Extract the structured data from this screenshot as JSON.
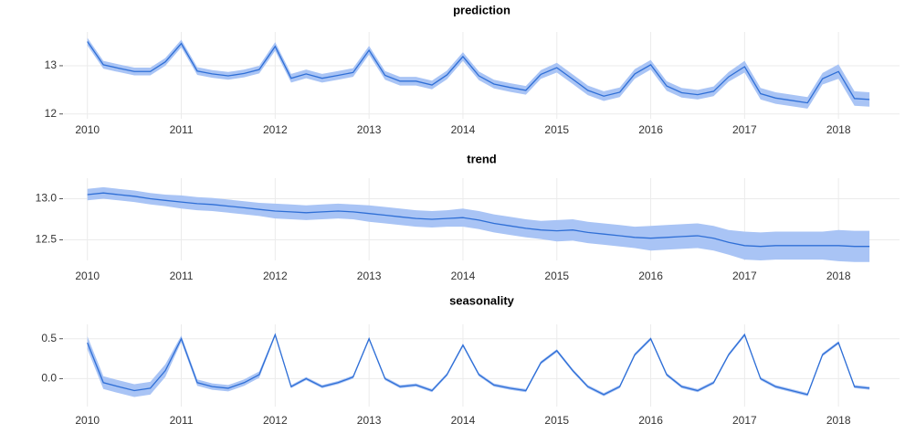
{
  "chart_data": [
    {
      "type": "line",
      "title": "prediction",
      "x": [
        2010,
        2010.17,
        2010.33,
        2010.5,
        2010.67,
        2010.83,
        2011,
        2011.17,
        2011.33,
        2011.5,
        2011.67,
        2011.83,
        2012,
        2012.17,
        2012.33,
        2012.5,
        2012.67,
        2012.83,
        2013,
        2013.17,
        2013.33,
        2013.5,
        2013.67,
        2013.83,
        2014,
        2014.17,
        2014.33,
        2014.5,
        2014.67,
        2014.83,
        2015,
        2015.17,
        2015.33,
        2015.5,
        2015.67,
        2015.83,
        2016,
        2016.17,
        2016.33,
        2016.5,
        2016.67,
        2016.83,
        2017,
        2017.17,
        2017.33,
        2017.5,
        2017.67,
        2017.83,
        2018,
        2018.17,
        2018.33
      ],
      "series": [
        {
          "color": "#2f6fd6",
          "band_color": "#a9c4f5",
          "values": [
            13.5,
            13.02,
            12.95,
            12.88,
            12.88,
            13.08,
            13.46,
            12.89,
            12.83,
            12.79,
            12.84,
            12.92,
            13.4,
            12.74,
            12.83,
            12.74,
            12.8,
            12.86,
            13.32,
            12.8,
            12.68,
            12.68,
            12.6,
            12.81,
            13.19,
            12.79,
            12.62,
            12.55,
            12.49,
            12.82,
            12.96,
            12.72,
            12.49,
            12.37,
            12.45,
            12.83,
            13.02,
            12.58,
            12.44,
            12.4,
            12.47,
            12.77,
            12.98,
            12.42,
            12.33,
            12.28,
            12.23,
            12.73,
            12.88,
            12.32,
            12.3
          ],
          "error": [
            0.08,
            0.08,
            0.08,
            0.08,
            0.08,
            0.08,
            0.08,
            0.08,
            0.08,
            0.08,
            0.08,
            0.08,
            0.09,
            0.09,
            0.09,
            0.09,
            0.09,
            0.09,
            0.09,
            0.09,
            0.09,
            0.09,
            0.09,
            0.09,
            0.09,
            0.09,
            0.09,
            0.09,
            0.09,
            0.09,
            0.1,
            0.1,
            0.1,
            0.1,
            0.1,
            0.1,
            0.1,
            0.1,
            0.1,
            0.1,
            0.1,
            0.1,
            0.12,
            0.12,
            0.12,
            0.12,
            0.12,
            0.12,
            0.15,
            0.15,
            0.15
          ]
        }
      ],
      "xlim": [
        2009.75,
        2018.65
      ],
      "xticks": [
        2010,
        2011,
        2012,
        2013,
        2014,
        2015,
        2016,
        2017,
        2018
      ],
      "ylim": [
        11.9,
        13.7
      ],
      "yticks": [
        12,
        13
      ],
      "grid": true
    },
    {
      "type": "line",
      "title": "trend",
      "x": [
        2010,
        2010.17,
        2010.33,
        2010.5,
        2010.67,
        2010.83,
        2011,
        2011.17,
        2011.33,
        2011.5,
        2011.67,
        2011.83,
        2012,
        2012.17,
        2012.33,
        2012.5,
        2012.67,
        2012.83,
        2013,
        2013.17,
        2013.33,
        2013.5,
        2013.67,
        2013.83,
        2014,
        2014.17,
        2014.33,
        2014.5,
        2014.67,
        2014.83,
        2015,
        2015.17,
        2015.33,
        2015.5,
        2015.67,
        2015.83,
        2016,
        2016.17,
        2016.33,
        2016.5,
        2016.67,
        2016.83,
        2017,
        2017.17,
        2017.33,
        2017.5,
        2017.67,
        2017.83,
        2018,
        2018.17,
        2018.33
      ],
      "series": [
        {
          "color": "#2f6fd6",
          "band_color": "#a9c4f5",
          "values": [
            13.05,
            13.07,
            13.05,
            13.03,
            13.0,
            12.98,
            12.96,
            12.94,
            12.93,
            12.91,
            12.89,
            12.87,
            12.85,
            12.84,
            12.83,
            12.84,
            12.85,
            12.84,
            12.82,
            12.8,
            12.78,
            12.76,
            12.75,
            12.76,
            12.77,
            12.74,
            12.7,
            12.67,
            12.64,
            12.62,
            12.61,
            12.62,
            12.59,
            12.57,
            12.55,
            12.53,
            12.52,
            12.53,
            12.54,
            12.55,
            12.52,
            12.47,
            12.43,
            12.42,
            12.43,
            12.43,
            12.43,
            12.43,
            12.43,
            12.42,
            12.42
          ],
          "error": [
            0.07,
            0.07,
            0.07,
            0.07,
            0.07,
            0.07,
            0.08,
            0.08,
            0.08,
            0.08,
            0.08,
            0.08,
            0.09,
            0.09,
            0.09,
            0.09,
            0.09,
            0.09,
            0.1,
            0.1,
            0.1,
            0.1,
            0.1,
            0.1,
            0.11,
            0.11,
            0.11,
            0.11,
            0.11,
            0.11,
            0.13,
            0.13,
            0.13,
            0.13,
            0.13,
            0.13,
            0.15,
            0.15,
            0.15,
            0.15,
            0.15,
            0.15,
            0.17,
            0.17,
            0.17,
            0.17,
            0.17,
            0.17,
            0.19,
            0.19,
            0.19
          ]
        }
      ],
      "xlim": [
        2009.75,
        2018.65
      ],
      "xticks": [
        2010,
        2011,
        2012,
        2013,
        2014,
        2015,
        2016,
        2017,
        2018
      ],
      "ylim": [
        12.25,
        13.25
      ],
      "yticks": [
        12.5,
        {
          "value": 13,
          "label": "13.0"
        }
      ],
      "grid": true
    },
    {
      "type": "line",
      "title": "seasonality",
      "x": [
        2010,
        2010.17,
        2010.33,
        2010.5,
        2010.67,
        2010.83,
        2011,
        2011.17,
        2011.33,
        2011.5,
        2011.67,
        2011.83,
        2012,
        2012.17,
        2012.33,
        2012.5,
        2012.67,
        2012.83,
        2013,
        2013.17,
        2013.33,
        2013.5,
        2013.67,
        2013.83,
        2014,
        2014.17,
        2014.33,
        2014.5,
        2014.67,
        2014.83,
        2015,
        2015.17,
        2015.33,
        2015.5,
        2015.67,
        2015.83,
        2016,
        2016.17,
        2016.33,
        2016.5,
        2016.67,
        2016.83,
        2017,
        2017.17,
        2017.33,
        2017.5,
        2017.67,
        2017.83,
        2018,
        2018.17,
        2018.33
      ],
      "series": [
        {
          "color": "#2f6fd6",
          "band_color": "#a9c4f5",
          "values": [
            0.45,
            -0.05,
            -0.1,
            -0.15,
            -0.12,
            0.1,
            0.5,
            -0.05,
            -0.1,
            -0.12,
            -0.05,
            0.05,
            0.55,
            -0.1,
            0,
            -0.1,
            -0.05,
            0.02,
            0.5,
            0,
            -0.1,
            -0.08,
            -0.15,
            0.05,
            0.42,
            0.05,
            -0.08,
            -0.12,
            -0.15,
            0.2,
            0.35,
            0.1,
            -0.1,
            -0.2,
            -0.1,
            0.3,
            0.5,
            0.05,
            -0.1,
            -0.15,
            -0.05,
            0.3,
            0.55,
            0,
            -0.1,
            -0.15,
            -0.2,
            0.3,
            0.45,
            -0.1,
            -0.12
          ],
          "error": [
            0.08,
            0.08,
            0.08,
            0.08,
            0.08,
            0.08,
            0.04,
            0.04,
            0.04,
            0.04,
            0.04,
            0.04,
            0.02,
            0.02,
            0.02,
            0.02,
            0.02,
            0.02,
            0.02,
            0.02,
            0.02,
            0.02,
            0.02,
            0.02,
            0.02,
            0.02,
            0.02,
            0.02,
            0.02,
            0.02,
            0.02,
            0.02,
            0.02,
            0.02,
            0.02,
            0.02,
            0.02,
            0.02,
            0.02,
            0.02,
            0.02,
            0.02,
            0.02,
            0.02,
            0.02,
            0.02,
            0.02,
            0.02,
            0.02,
            0.02,
            0.02
          ]
        }
      ],
      "xlim": [
        2009.75,
        2018.65
      ],
      "xticks": [
        2010,
        2011,
        2012,
        2013,
        2014,
        2015,
        2016,
        2017,
        2018
      ],
      "ylim": [
        -0.35,
        0.68
      ],
      "yticks": [
        {
          "value": 0,
          "label": "0.0"
        },
        0.5
      ],
      "grid": true
    }
  ]
}
